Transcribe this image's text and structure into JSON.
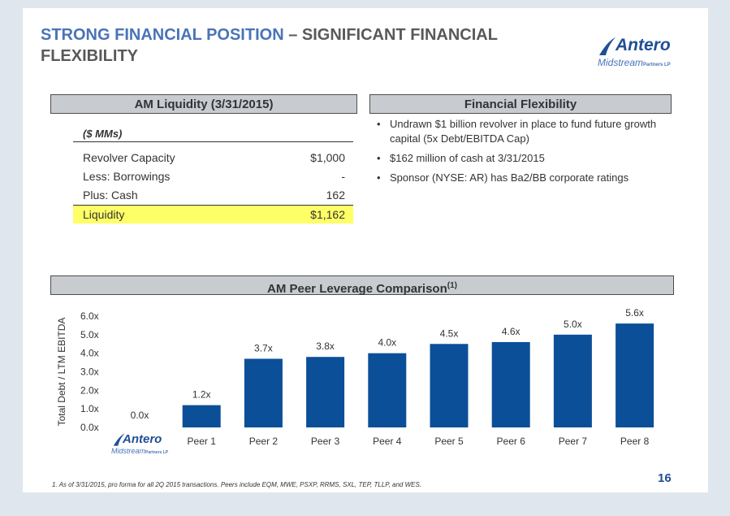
{
  "title": {
    "accent": "STRONG FINANCIAL POSITION",
    "rest": " – SIGNIFICANT FINANCIAL FLEXIBILITY"
  },
  "logo": {
    "name": "Antero",
    "sub": "Midstream",
    "sub_small": "Partners LP"
  },
  "liquidity": {
    "header": "AM Liquidity (3/31/2015)",
    "unit": "($ MMs)",
    "rows": [
      {
        "label": "Revolver Capacity",
        "value": "$1,000"
      },
      {
        "label": "Less: Borrowings",
        "value": "-"
      },
      {
        "label": "Plus: Cash",
        "value": "162"
      }
    ],
    "total": {
      "label": "Liquidity",
      "value": "$1,162"
    }
  },
  "flexibility": {
    "header": "Financial Flexibility",
    "bullets": [
      "Undrawn $1 billion revolver in place to fund future growth capital (5x Debt/EBITDA Cap)",
      "$162 million of cash at 3/31/2015",
      "Sponsor (NYSE: AR) has Ba2/BB corporate ratings"
    ]
  },
  "peer_header": {
    "text": "AM Peer Leverage Comparison",
    "sup": "(1)"
  },
  "chart_data": {
    "type": "bar",
    "title": "AM Peer Leverage Comparison",
    "ylabel": "Total Debt / LTM EBITDA",
    "xlabel": "",
    "categories": [
      "AM",
      "Peer 1",
      "Peer 2",
      "Peer 3",
      "Peer 4",
      "Peer 5",
      "Peer 6",
      "Peer 7",
      "Peer 8"
    ],
    "values": [
      0.0,
      1.2,
      3.7,
      3.8,
      4.0,
      4.5,
      4.6,
      5.0,
      5.6
    ],
    "labels": [
      "0.0x",
      "1.2x",
      "3.7x",
      "3.8x",
      "4.0x",
      "4.5x",
      "4.6x",
      "5.0x",
      "5.6x"
    ],
    "yticks": [
      "0.0x",
      "1.0x",
      "2.0x",
      "3.0x",
      "4.0x",
      "5.0x",
      "6.0x"
    ],
    "ylim": [
      0,
      6
    ],
    "bar_color": "#0b4f98",
    "grid": false
  },
  "footnote": "1.  As of 3/31/2015, pro forma for all 2Q 2015 transactions.  Peers include EQM, MWE, PSXP, RRMS, SXL, TEP, TLLP, and WES.",
  "page_number": "16"
}
